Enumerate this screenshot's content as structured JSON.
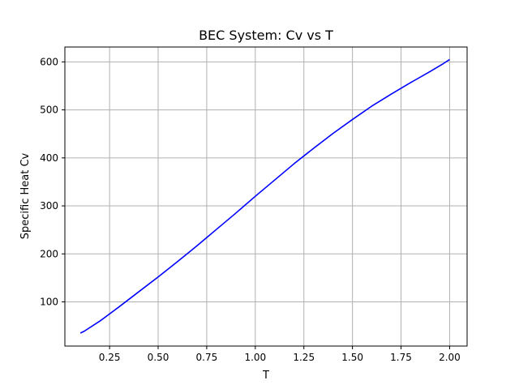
{
  "colors": {
    "series": "#0000ff",
    "grid": "#b0b0b0",
    "axis": "#000000",
    "background": "#ffffff"
  },
  "chart_data": {
    "type": "line",
    "title": "BEC System: Cv vs T",
    "xlabel": "T",
    "ylabel": "Specific Heat Cv",
    "xlim": [
      0.02,
      2.09
    ],
    "ylim": [
      8,
      631
    ],
    "grid": true,
    "x_ticks": [
      0.25,
      0.5,
      0.75,
      1.0,
      1.25,
      1.5,
      1.75,
      2.0
    ],
    "x_tick_labels": [
      "0.25",
      "0.50",
      "0.75",
      "1.00",
      "1.25",
      "1.50",
      "1.75",
      "2.00"
    ],
    "y_ticks": [
      100,
      200,
      300,
      400,
      500,
      600
    ],
    "y_tick_labels": [
      "100",
      "200",
      "300",
      "400",
      "500",
      "600"
    ],
    "series": [
      {
        "color": "#0000ff",
        "x": [
          0.1,
          0.12,
          0.2,
          0.3,
          0.4,
          0.5,
          0.6,
          0.7,
          0.8,
          0.9,
          1.0,
          1.1,
          1.2,
          1.3,
          1.4,
          1.5,
          1.6,
          1.7,
          1.8,
          1.9,
          1.97,
          2.0
        ],
        "y": [
          35,
          39,
          60,
          90,
          121,
          152,
          184,
          217,
          251,
          285,
          320,
          354,
          388,
          420,
          451,
          480,
          508,
          533,
          557,
          580,
          597,
          605
        ]
      }
    ]
  }
}
